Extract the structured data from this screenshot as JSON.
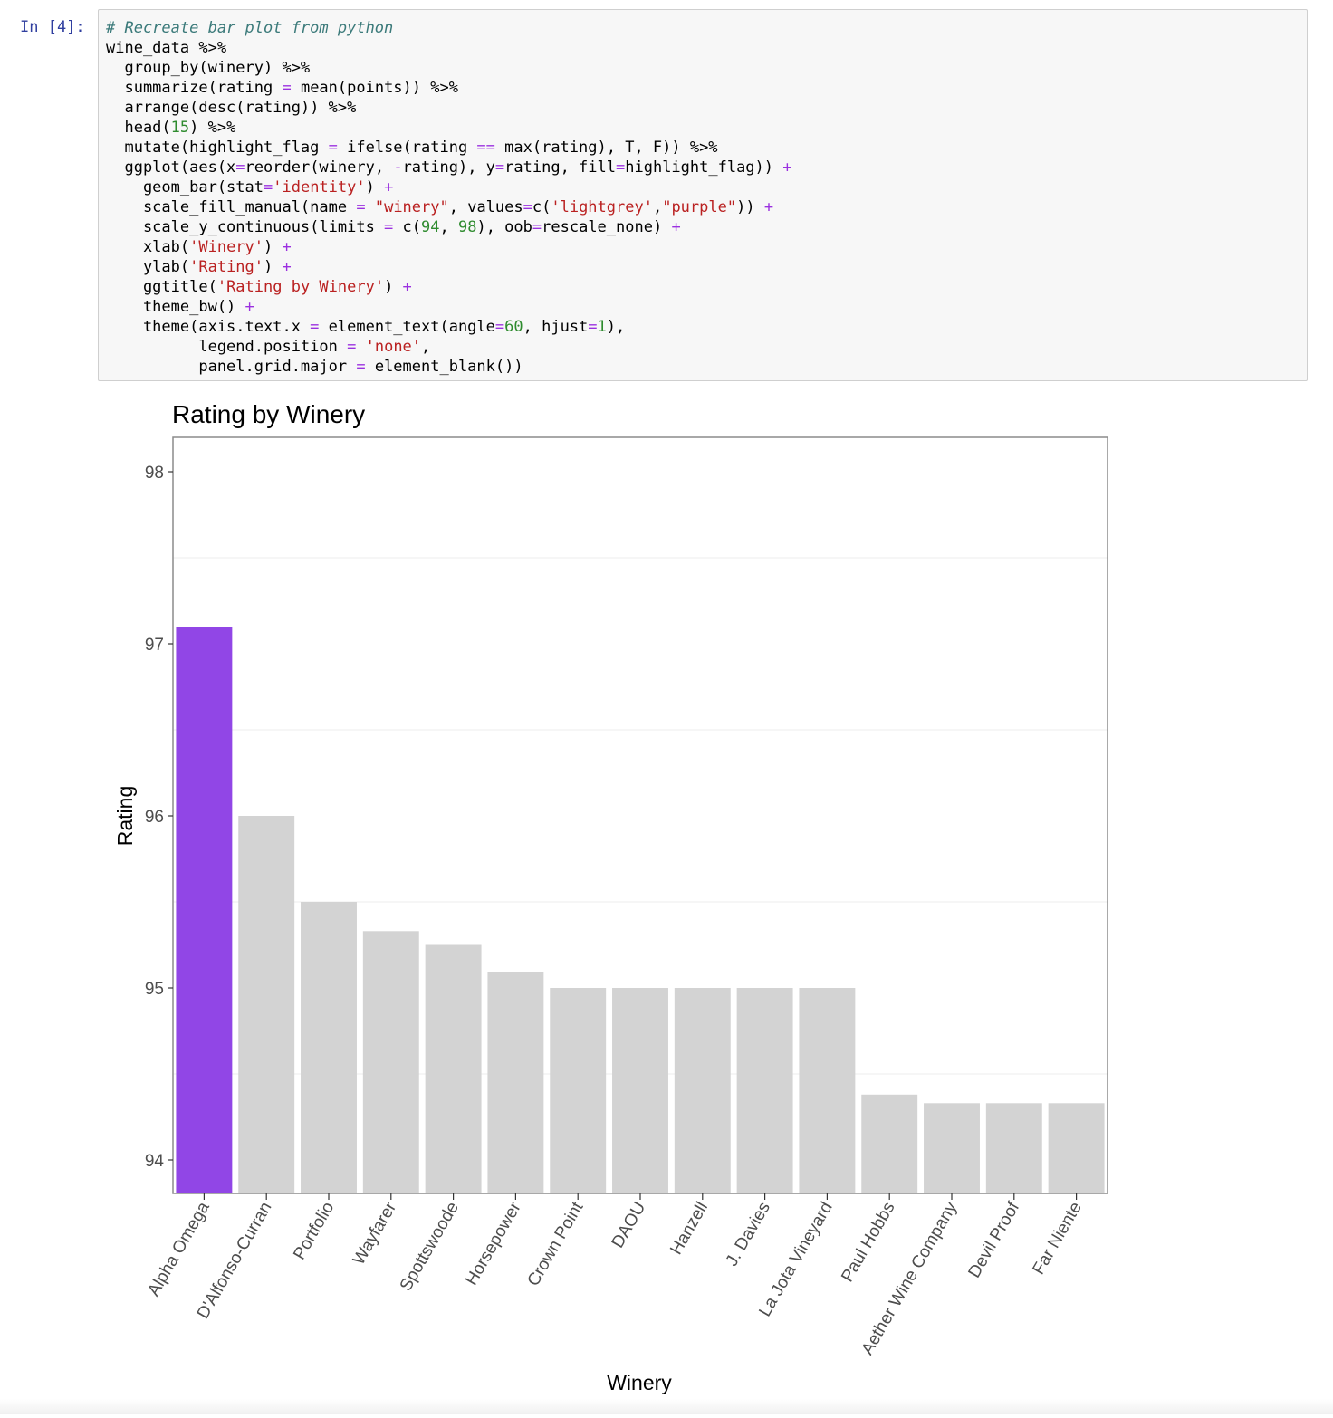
{
  "cell": {
    "prompt": "In [4]:",
    "code_lines": [
      [
        {
          "t": "# Recreate bar plot from python",
          "c": "comment"
        }
      ],
      [
        {
          "t": "wine_data %>%",
          "c": "plain"
        }
      ],
      [
        {
          "t": "  group_by(winery) %>%",
          "c": "plain"
        }
      ],
      [
        {
          "t": "  summarize(rating ",
          "c": "plain"
        },
        {
          "t": "=",
          "c": "op"
        },
        {
          "t": " mean(points)) %>%",
          "c": "plain"
        }
      ],
      [
        {
          "t": "  arrange(desc(rating)) %>%",
          "c": "plain"
        }
      ],
      [
        {
          "t": "  head(",
          "c": "plain"
        },
        {
          "t": "15",
          "c": "number"
        },
        {
          "t": ") %>%",
          "c": "plain"
        }
      ],
      [
        {
          "t": "  mutate(highlight_flag ",
          "c": "plain"
        },
        {
          "t": "=",
          "c": "op"
        },
        {
          "t": " ifelse(rating ",
          "c": "plain"
        },
        {
          "t": "==",
          "c": "op"
        },
        {
          "t": " max(rating), T, F)) %>%",
          "c": "plain"
        }
      ],
      [
        {
          "t": "  ggplot(aes(x",
          "c": "plain"
        },
        {
          "t": "=",
          "c": "op"
        },
        {
          "t": "reorder(winery, ",
          "c": "plain"
        },
        {
          "t": "-",
          "c": "op"
        },
        {
          "t": "rating), y",
          "c": "plain"
        },
        {
          "t": "=",
          "c": "op"
        },
        {
          "t": "rating, fill",
          "c": "plain"
        },
        {
          "t": "=",
          "c": "op"
        },
        {
          "t": "highlight_flag)) ",
          "c": "plain"
        },
        {
          "t": "+",
          "c": "op"
        }
      ],
      [
        {
          "t": "    geom_bar(stat",
          "c": "plain"
        },
        {
          "t": "=",
          "c": "op"
        },
        {
          "t": "'identity'",
          "c": "string"
        },
        {
          "t": ") ",
          "c": "plain"
        },
        {
          "t": "+",
          "c": "op"
        }
      ],
      [
        {
          "t": "    scale_fill_manual(name ",
          "c": "plain"
        },
        {
          "t": "=",
          "c": "op"
        },
        {
          "t": " ",
          "c": "plain"
        },
        {
          "t": "\"winery\"",
          "c": "string"
        },
        {
          "t": ", values",
          "c": "plain"
        },
        {
          "t": "=",
          "c": "op"
        },
        {
          "t": "c(",
          "c": "plain"
        },
        {
          "t": "'lightgrey'",
          "c": "string"
        },
        {
          "t": ",",
          "c": "plain"
        },
        {
          "t": "\"purple\"",
          "c": "string"
        },
        {
          "t": ")) ",
          "c": "plain"
        },
        {
          "t": "+",
          "c": "op"
        }
      ],
      [
        {
          "t": "    scale_y_continuous(limits ",
          "c": "plain"
        },
        {
          "t": "=",
          "c": "op"
        },
        {
          "t": " c(",
          "c": "plain"
        },
        {
          "t": "94",
          "c": "number"
        },
        {
          "t": ", ",
          "c": "plain"
        },
        {
          "t": "98",
          "c": "number"
        },
        {
          "t": "), oob",
          "c": "plain"
        },
        {
          "t": "=",
          "c": "op"
        },
        {
          "t": "rescale_none) ",
          "c": "plain"
        },
        {
          "t": "+",
          "c": "op"
        }
      ],
      [
        {
          "t": "    xlab(",
          "c": "plain"
        },
        {
          "t": "'Winery'",
          "c": "string"
        },
        {
          "t": ") ",
          "c": "plain"
        },
        {
          "t": "+",
          "c": "op"
        }
      ],
      [
        {
          "t": "    ylab(",
          "c": "plain"
        },
        {
          "t": "'Rating'",
          "c": "string"
        },
        {
          "t": ") ",
          "c": "plain"
        },
        {
          "t": "+",
          "c": "op"
        }
      ],
      [
        {
          "t": "    ggtitle(",
          "c": "plain"
        },
        {
          "t": "'Rating by Winery'",
          "c": "string"
        },
        {
          "t": ") ",
          "c": "plain"
        },
        {
          "t": "+",
          "c": "op"
        }
      ],
      [
        {
          "t": "    theme_bw() ",
          "c": "plain"
        },
        {
          "t": "+",
          "c": "op"
        }
      ],
      [
        {
          "t": "    theme(axis.text.x ",
          "c": "plain"
        },
        {
          "t": "=",
          "c": "op"
        },
        {
          "t": " element_text(angle",
          "c": "plain"
        },
        {
          "t": "=",
          "c": "op"
        },
        {
          "t": "60",
          "c": "number"
        },
        {
          "t": ", hjust",
          "c": "plain"
        },
        {
          "t": "=",
          "c": "op"
        },
        {
          "t": "1",
          "c": "number"
        },
        {
          "t": "),",
          "c": "plain"
        }
      ],
      [
        {
          "t": "          legend.position ",
          "c": "plain"
        },
        {
          "t": "=",
          "c": "op"
        },
        {
          "t": " ",
          "c": "plain"
        },
        {
          "t": "'none'",
          "c": "string"
        },
        {
          "t": ",",
          "c": "plain"
        }
      ],
      [
        {
          "t": "          panel.grid.major ",
          "c": "plain"
        },
        {
          "t": "=",
          "c": "op"
        },
        {
          "t": " element_blank())",
          "c": "plain"
        }
      ]
    ]
  },
  "colors": {
    "highlight": "#9146e6",
    "default_bar": "#d3d3d3",
    "panel_border": "#8c8c8c",
    "minor_grid": "#ececec",
    "tick_label": "#4d4d4d"
  },
  "chart_data": {
    "type": "bar",
    "title": "Rating by Winery",
    "xlabel": "Winery",
    "ylabel": "Rating",
    "ylim": [
      94,
      98
    ],
    "y_ticks": [
      94,
      95,
      96,
      97,
      98
    ],
    "grid": "minor only",
    "legend": "none",
    "categories": [
      "Alpha Omega",
      "D'Alfonso-Curran",
      "Portfolio",
      "Wayfarer",
      "Spottswoode",
      "Horsepower",
      "Crown Point",
      "DAOU",
      "Hanzell",
      "J. Davies",
      "La Jota Vineyard",
      "Paul Hobbs",
      "Aether Wine Company",
      "Devil Proof",
      "Far Niente"
    ],
    "values": [
      97.1,
      96.0,
      95.5,
      95.33,
      95.25,
      95.09,
      95.0,
      95.0,
      95.0,
      95.0,
      95.0,
      94.38,
      94.33,
      94.33,
      94.33
    ],
    "highlight": [
      true,
      false,
      false,
      false,
      false,
      false,
      false,
      false,
      false,
      false,
      false,
      false,
      false,
      false,
      false
    ]
  }
}
